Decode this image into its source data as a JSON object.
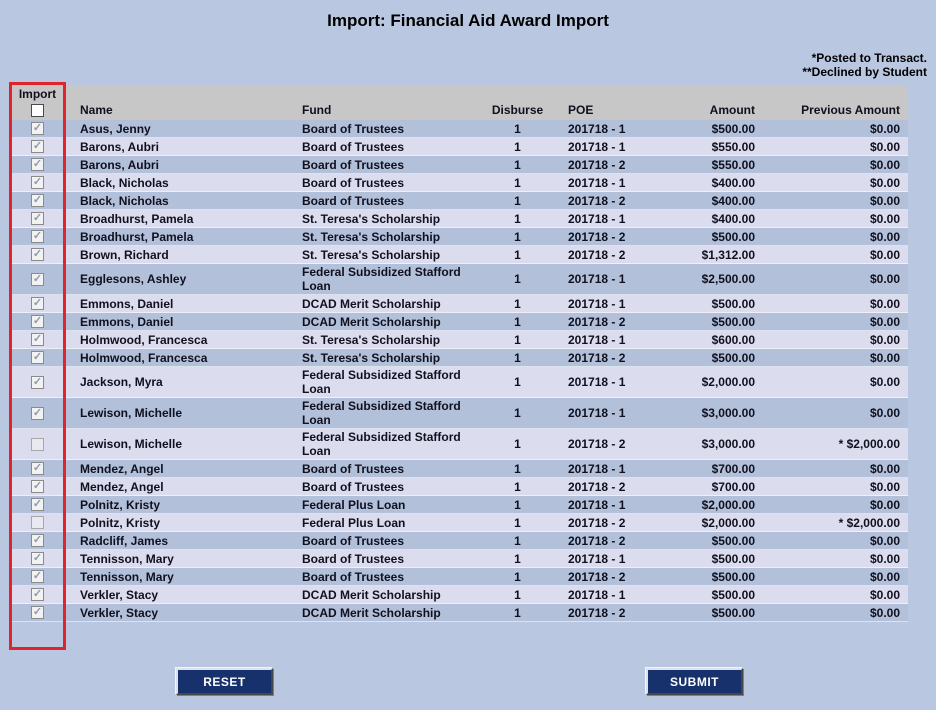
{
  "page": {
    "title": "Import: Financial Aid Award Import",
    "note1": "*Posted to Transact.",
    "note2": "**Declined by Student"
  },
  "table": {
    "columns": {
      "import": "Import",
      "name": "Name",
      "fund": "Fund",
      "disburse": "Disburse",
      "poe": "POE",
      "amount": "Amount",
      "previous": "Previous Amount"
    },
    "select_all_checked": false,
    "rows": [
      {
        "name": "Asus, Jenny",
        "fund": "Board of Trustees",
        "disburse": "1",
        "poe": "201718 - 1",
        "amount": "$500.00",
        "previous": "$0.00",
        "checked": true,
        "enabled": true
      },
      {
        "name": "Barons, Aubri",
        "fund": "Board of Trustees",
        "disburse": "1",
        "poe": "201718 - 1",
        "amount": "$550.00",
        "previous": "$0.00",
        "checked": true,
        "enabled": true
      },
      {
        "name": "Barons, Aubri",
        "fund": "Board of Trustees",
        "disburse": "1",
        "poe": "201718 - 2",
        "amount": "$550.00",
        "previous": "$0.00",
        "checked": true,
        "enabled": true
      },
      {
        "name": "Black, Nicholas",
        "fund": "Board of Trustees",
        "disburse": "1",
        "poe": "201718 - 1",
        "amount": "$400.00",
        "previous": "$0.00",
        "checked": true,
        "enabled": true
      },
      {
        "name": "Black, Nicholas",
        "fund": "Board of Trustees",
        "disburse": "1",
        "poe": "201718 - 2",
        "amount": "$400.00",
        "previous": "$0.00",
        "checked": true,
        "enabled": true
      },
      {
        "name": "Broadhurst, Pamela",
        "fund": "St. Teresa's Scholarship",
        "disburse": "1",
        "poe": "201718 - 1",
        "amount": "$400.00",
        "previous": "$0.00",
        "checked": true,
        "enabled": true
      },
      {
        "name": "Broadhurst, Pamela",
        "fund": "St. Teresa's Scholarship",
        "disburse": "1",
        "poe": "201718 - 2",
        "amount": "$500.00",
        "previous": "$0.00",
        "checked": true,
        "enabled": true
      },
      {
        "name": "Brown, Richard",
        "fund": "St. Teresa's Scholarship",
        "disburse": "1",
        "poe": "201718 - 2",
        "amount": "$1,312.00",
        "previous": "$0.00",
        "checked": true,
        "enabled": true
      },
      {
        "name": "Egglesons, Ashley",
        "fund": "Federal Subsidized Stafford Loan",
        "disburse": "1",
        "poe": "201718 - 1",
        "amount": "$2,500.00",
        "previous": "$0.00",
        "checked": true,
        "enabled": true
      },
      {
        "name": "Emmons, Daniel",
        "fund": "DCAD Merit Scholarship",
        "disburse": "1",
        "poe": "201718 - 1",
        "amount": "$500.00",
        "previous": "$0.00",
        "checked": true,
        "enabled": true
      },
      {
        "name": "Emmons, Daniel",
        "fund": "DCAD Merit Scholarship",
        "disburse": "1",
        "poe": "201718 - 2",
        "amount": "$500.00",
        "previous": "$0.00",
        "checked": true,
        "enabled": true
      },
      {
        "name": "Holmwood, Francesca",
        "fund": "St. Teresa's Scholarship",
        "disburse": "1",
        "poe": "201718 - 1",
        "amount": "$600.00",
        "previous": "$0.00",
        "checked": true,
        "enabled": true
      },
      {
        "name": "Holmwood, Francesca",
        "fund": "St. Teresa's Scholarship",
        "disburse": "1",
        "poe": "201718 - 2",
        "amount": "$500.00",
        "previous": "$0.00",
        "checked": true,
        "enabled": true
      },
      {
        "name": "Jackson, Myra",
        "fund": "Federal Subsidized Stafford Loan",
        "disburse": "1",
        "poe": "201718 - 1",
        "amount": "$2,000.00",
        "previous": "$0.00",
        "checked": true,
        "enabled": true
      },
      {
        "name": "Lewison, Michelle",
        "fund": "Federal Subsidized Stafford Loan",
        "disburse": "1",
        "poe": "201718 - 1",
        "amount": "$3,000.00",
        "previous": "$0.00",
        "checked": true,
        "enabled": true
      },
      {
        "name": "Lewison, Michelle",
        "fund": "Federal Subsidized Stafford Loan",
        "disburse": "1",
        "poe": "201718 - 2",
        "amount": "$3,000.00",
        "previous": "* $2,000.00",
        "checked": false,
        "enabled": false
      },
      {
        "name": "Mendez, Angel",
        "fund": "Board of Trustees",
        "disburse": "1",
        "poe": "201718 - 1",
        "amount": "$700.00",
        "previous": "$0.00",
        "checked": true,
        "enabled": true
      },
      {
        "name": "Mendez, Angel",
        "fund": "Board of Trustees",
        "disburse": "1",
        "poe": "201718 - 2",
        "amount": "$700.00",
        "previous": "$0.00",
        "checked": true,
        "enabled": true
      },
      {
        "name": "Polnitz, Kristy",
        "fund": "Federal Plus Loan",
        "disburse": "1",
        "poe": "201718 - 1",
        "amount": "$2,000.00",
        "previous": "$0.00",
        "checked": true,
        "enabled": true
      },
      {
        "name": "Polnitz, Kristy",
        "fund": "Federal Plus Loan",
        "disburse": "1",
        "poe": "201718 - 2",
        "amount": "$2,000.00",
        "previous": "* $2,000.00",
        "checked": false,
        "enabled": false
      },
      {
        "name": "Radcliff, James",
        "fund": "Board of Trustees",
        "disburse": "1",
        "poe": "201718 - 2",
        "amount": "$500.00",
        "previous": "$0.00",
        "checked": true,
        "enabled": true
      },
      {
        "name": "Tennisson, Mary",
        "fund": "Board of Trustees",
        "disburse": "1",
        "poe": "201718 - 1",
        "amount": "$500.00",
        "previous": "$0.00",
        "checked": true,
        "enabled": true
      },
      {
        "name": "Tennisson, Mary",
        "fund": "Board of Trustees",
        "disburse": "1",
        "poe": "201718 - 2",
        "amount": "$500.00",
        "previous": "$0.00",
        "checked": true,
        "enabled": true
      },
      {
        "name": "Verkler, Stacy",
        "fund": "DCAD Merit Scholarship",
        "disburse": "1",
        "poe": "201718 - 1",
        "amount": "$500.00",
        "previous": "$0.00",
        "checked": true,
        "enabled": true
      },
      {
        "name": "Verkler, Stacy",
        "fund": "DCAD Merit Scholarship",
        "disburse": "1",
        "poe": "201718 - 2",
        "amount": "$500.00",
        "previous": "$0.00",
        "checked": true,
        "enabled": true
      }
    ]
  },
  "buttons": {
    "reset": "RESET",
    "submit": "SUBMIT"
  },
  "colors": {
    "page_background": "#b9c7e1",
    "row_blue": "#b2c0da",
    "row_lavender": "#dcdcef",
    "header_gray": "#c7c7c7",
    "highlight_red": "#e3232b",
    "button_navy": "#17316d"
  }
}
